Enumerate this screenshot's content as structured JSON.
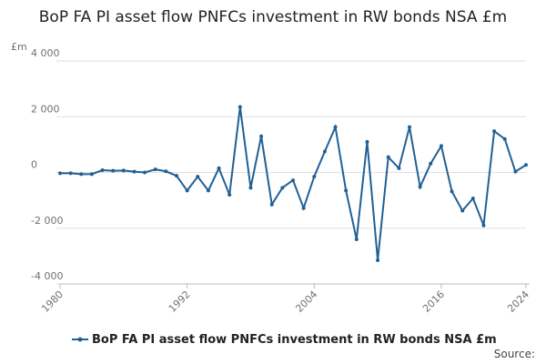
{
  "chart_data": {
    "type": "line",
    "title": "BoP FA PI asset flow PNFCs investment in RW bonds NSA £m",
    "y_label": "£m",
    "source": "Source:",
    "x": [
      1980,
      1981,
      1982,
      1983,
      1984,
      1985,
      1986,
      1987,
      1988,
      1989,
      1990,
      1991,
      1992,
      1993,
      1994,
      1995,
      1996,
      1997,
      1998,
      1999,
      2000,
      2001,
      2002,
      2003,
      2004,
      2005,
      2006,
      2007,
      2008,
      2009,
      2010,
      2011,
      2012,
      2013,
      2014,
      2015,
      2016,
      2017,
      2018,
      2019,
      2020,
      2021,
      2022,
      2023,
      2024
    ],
    "series": [
      {
        "name": "BoP FA PI asset flow PNFCs investment in RW bonds NSA £m",
        "color": "#206095",
        "values": [
          -30,
          -30,
          -60,
          -60,
          80,
          60,
          70,
          30,
          0,
          110,
          40,
          -120,
          -650,
          -150,
          -650,
          150,
          -800,
          2350,
          -550,
          1300,
          -1150,
          -550,
          -280,
          -1280,
          -150,
          750,
          1630,
          -650,
          -2400,
          1100,
          -3150,
          550,
          150,
          1630,
          -520,
          320,
          950,
          -680,
          -1370,
          -930,
          -1900,
          1480,
          1200,
          30,
          270
        ]
      }
    ],
    "xlim": [
      1980,
      2024
    ],
    "xticks": [
      1980,
      1992,
      2004,
      2016,
      2024
    ],
    "ylim": [
      -4000,
      4000
    ],
    "yticks": [
      {
        "value": -4000,
        "label": "-4 000"
      },
      {
        "value": -2000,
        "label": "-2 000"
      },
      0,
      {
        "value": 2000,
        "label": "2 000"
      },
      {
        "value": 4000,
        "label": "4 000"
      }
    ],
    "grid": true
  }
}
